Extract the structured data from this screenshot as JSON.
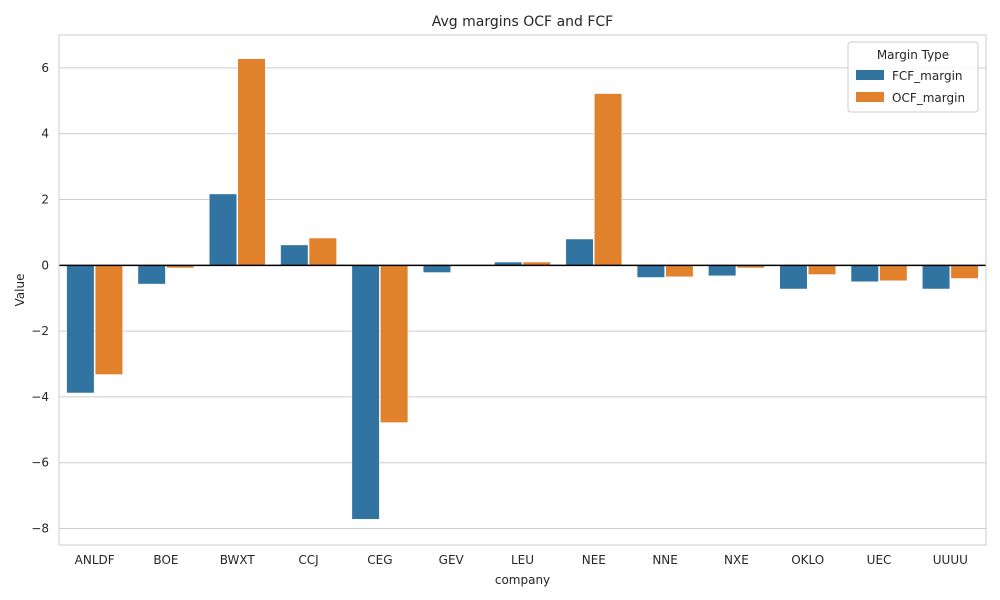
{
  "chart_data": {
    "type": "bar",
    "title": "Avg margins OCF and FCF",
    "xlabel": "company",
    "ylabel": "Value",
    "ylim": [
      -8.5,
      7.0
    ],
    "yticks": [
      -8,
      -6,
      -4,
      -2,
      0,
      2,
      4,
      6
    ],
    "grid": true,
    "legend_position": "top-right",
    "legend_title": "Margin Type",
    "categories": [
      "ANLDF",
      "BOE",
      "BWXT",
      "CCJ",
      "CEG",
      "GEV",
      "LEU",
      "NEE",
      "NNE",
      "NXE",
      "OKLO",
      "UEC",
      "UUUU"
    ],
    "series": [
      {
        "name": "FCF_margin",
        "color": "#3274a1",
        "values": [
          -3.88,
          -0.57,
          2.17,
          0.62,
          -7.72,
          -0.22,
          0.1,
          0.8,
          -0.37,
          -0.32,
          -0.72,
          -0.5,
          -0.72
        ]
      },
      {
        "name": "OCF_margin",
        "color": "#e1812c",
        "values": [
          -3.32,
          -0.08,
          6.28,
          0.83,
          -4.78,
          0.0,
          0.1,
          5.22,
          -0.35,
          -0.08,
          -0.28,
          -0.47,
          -0.4
        ]
      }
    ]
  }
}
